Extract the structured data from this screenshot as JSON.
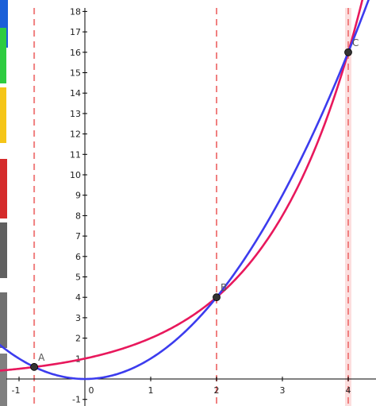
{
  "chart_data": {
    "type": "line",
    "title": "",
    "xlabel": "",
    "ylabel": "",
    "xlim": [
      -1.2,
      4.4
    ],
    "ylim": [
      -1.2,
      18.2
    ],
    "grid": false,
    "x_ticks": [
      "-1",
      "0",
      "1",
      "2",
      "3",
      "4"
    ],
    "y_ticks": [
      "-1",
      "0",
      "1",
      "2",
      "3",
      "4",
      "5",
      "6",
      "7",
      "8",
      "9",
      "10",
      "11",
      "12",
      "13",
      "14",
      "15",
      "16",
      "17",
      "18"
    ],
    "series": [
      {
        "color": "#e8185c",
        "x": [
          -1.5,
          -1.0,
          -0.5,
          0.0,
          0.5,
          1.0,
          1.5,
          2.0,
          2.5,
          3.0,
          3.5,
          4.0,
          4.25
        ],
        "y": [
          0.35,
          0.5,
          0.71,
          1.0,
          1.41,
          2.0,
          2.83,
          4.0,
          5.66,
          8.0,
          11.31,
          16.0,
          19.03
        ]
      },
      {
        "color": "#3c3cee",
        "x": [
          -1.5,
          -1.0,
          -0.5,
          0.0,
          0.5,
          1.0,
          1.5,
          2.0,
          2.5,
          3.0,
          3.5,
          4.0,
          4.25
        ],
        "y": [
          2.25,
          1.0,
          0.25,
          0.0,
          0.25,
          1.0,
          2.25,
          4.0,
          6.25,
          9.0,
          12.25,
          16.0,
          18.06
        ]
      }
    ],
    "points": [
      {
        "label": "A",
        "x": -0.77,
        "y": 0.59
      },
      {
        "label": "B",
        "x": 2.0,
        "y": 4.0
      },
      {
        "label": "C",
        "x": 4.0,
        "y": 16.0
      }
    ],
    "vertical_lines": [
      {
        "x": -0.77,
        "color": "#f08080"
      },
      {
        "x": 2.0,
        "color": "#f08080"
      },
      {
        "x": 4.0,
        "color": "#f08080"
      }
    ],
    "axis_color": "#000000"
  }
}
